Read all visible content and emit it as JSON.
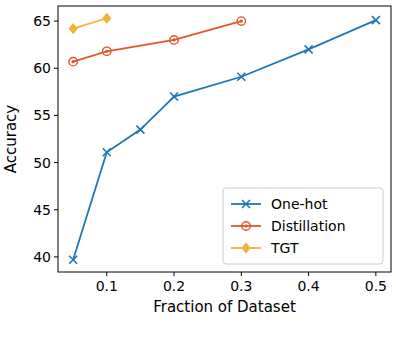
{
  "chart_data": {
    "type": "line",
    "x_label": "Fraction of Dataset",
    "y_label": "Accuracy",
    "xlim": [
      0.0275,
      0.5225
    ],
    "ylim": [
      38.4,
      66.6
    ],
    "xticks": [
      0.1,
      0.2,
      0.3,
      0.4,
      0.5
    ],
    "yticks": [
      40,
      45,
      50,
      55,
      60,
      65
    ],
    "grid": false,
    "legend": "lower right",
    "series": [
      {
        "name": "One-hot",
        "color": "#1f77b4",
        "marker": "x",
        "line_style": "solid",
        "x": [
          0.05,
          0.1,
          0.15,
          0.2,
          0.3,
          0.4,
          0.5
        ],
        "values": [
          39.7,
          51.1,
          53.5,
          57.0,
          59.1,
          62.0,
          65.1
        ]
      },
      {
        "name": "Distillation",
        "color": "#e4572e",
        "marker": "circle",
        "line_style": "solid",
        "x": [
          0.05,
          0.1,
          0.2,
          0.3
        ],
        "values": [
          60.7,
          61.8,
          63.0,
          65.0
        ]
      },
      {
        "name": "TGT",
        "color": "#f2b134",
        "marker": "diamond",
        "line_style": "solid",
        "x": [
          0.05,
          0.1
        ],
        "values": [
          64.2,
          65.3
        ]
      }
    ]
  }
}
